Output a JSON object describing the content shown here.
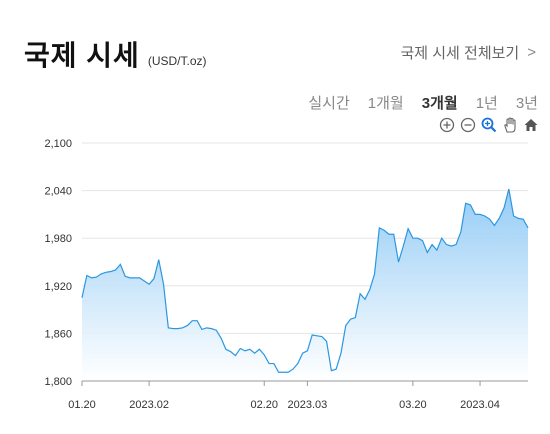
{
  "header": {
    "title": "국제 시세",
    "unit": "(USD/T.oz)",
    "link_label": "국제 시세 전체보기",
    "link_chevron": ">"
  },
  "tabs": [
    {
      "label": "실시간",
      "active": false
    },
    {
      "label": "1개월",
      "active": false
    },
    {
      "label": "3개월",
      "active": true
    },
    {
      "label": "1년",
      "active": false
    },
    {
      "label": "3년",
      "active": false
    }
  ],
  "toolbar": [
    "zoom-in-icon",
    "zoom-out-icon",
    "zoom-select-icon",
    "pan-hand-icon",
    "home-icon"
  ],
  "colors": {
    "line": "#2b97e0",
    "fill_top": "#8ec9f5",
    "fill_bottom": "#ffffff",
    "grid": "#e6e6e6",
    "zoom_select": "#1a73d9"
  },
  "chart_data": {
    "type": "area",
    "y_ticks": [
      "2,100",
      "2,040",
      "1,980",
      "1,920",
      "1,860",
      "1,800"
    ],
    "x_ticks": [
      "01.20",
      "2023.02",
      "02.20",
      "2023.03",
      "03.20",
      "2023.04"
    ],
    "x_tick_index": [
      0,
      14,
      38,
      47,
      69,
      83
    ],
    "ylim": [
      1800,
      2100
    ],
    "grid": true,
    "values": [
      1905,
      1933,
      1930,
      1931,
      1935,
      1937,
      1938,
      1940,
      1947,
      1932,
      1930,
      1930,
      1930,
      1926,
      1922,
      1929,
      1953,
      1922,
      1867,
      1866,
      1866,
      1867,
      1870,
      1876,
      1876,
      1865,
      1867,
      1866,
      1864,
      1854,
      1840,
      1837,
      1832,
      1841,
      1838,
      1840,
      1835,
      1840,
      1833,
      1822,
      1822,
      1811,
      1811,
      1811,
      1815,
      1822,
      1835,
      1838,
      1858,
      1857,
      1856,
      1850,
      1813,
      1815,
      1835,
      1870,
      1878,
      1880,
      1910,
      1903,
      1915,
      1935,
      1993,
      1990,
      1985,
      1985,
      1950,
      1970,
      1992,
      1980,
      1980,
      1977,
      1962,
      1972,
      1965,
      1980,
      1972,
      1970,
      1972,
      1988,
      2024,
      2022,
      2010,
      2010,
      2008,
      2004,
      1996,
      2005,
      2018,
      2042,
      2008,
      2005,
      2004,
      1993
    ]
  }
}
